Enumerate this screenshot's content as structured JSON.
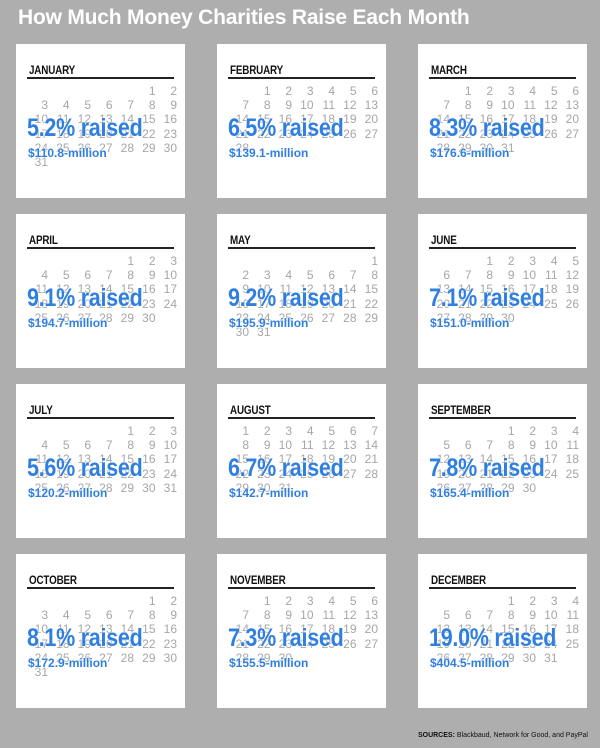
{
  "title": "How Much Money Charities Raise Each Month",
  "source_label": "SOURCES:",
  "source_text": "Blackbaud, Network for Good, and PayPal",
  "chart_data": {
    "type": "table",
    "title": "How Much Money Charities Raise Each Month",
    "months": [
      {
        "name": "JANUARY",
        "percent": 5.2,
        "percent_label": "5.2% raised",
        "amount_label": "$110.8-million",
        "amount_millions": 110.8,
        "start_col": 5,
        "days": 31
      },
      {
        "name": "FEBRUARY",
        "percent": 6.5,
        "percent_label": "6.5% raised",
        "amount_label": "$139.1-million",
        "amount_millions": 139.1,
        "start_col": 1,
        "days": 28
      },
      {
        "name": "MARCH",
        "percent": 8.3,
        "percent_label": "8.3% raised",
        "amount_label": "$176.6-million",
        "amount_millions": 176.6,
        "start_col": 1,
        "days": 31
      },
      {
        "name": "APRIL",
        "percent": 9.1,
        "percent_label": "9.1% raised",
        "amount_label": "$194.7-million",
        "amount_millions": 194.7,
        "start_col": 4,
        "days": 30
      },
      {
        "name": "MAY",
        "percent": 9.2,
        "percent_label": "9.2% raised",
        "amount_label": "$195.9-million",
        "amount_millions": 195.9,
        "start_col": 6,
        "days": 31
      },
      {
        "name": "JUNE",
        "percent": 7.1,
        "percent_label": "7.1% raised",
        "amount_label": "$151.0-million",
        "amount_millions": 151.0,
        "start_col": 2,
        "days": 30
      },
      {
        "name": "JULY",
        "percent": 5.6,
        "percent_label": "5.6% raised",
        "amount_label": "$120.2-million",
        "amount_millions": 120.2,
        "start_col": 4,
        "days": 31
      },
      {
        "name": "AUGUST",
        "percent": 6.7,
        "percent_label": "6.7% raised",
        "amount_label": "$142.7-million",
        "amount_millions": 142.7,
        "start_col": 0,
        "days": 31
      },
      {
        "name": "SEPTEMBER",
        "percent": 7.8,
        "percent_label": "7.8% raised",
        "amount_label": "$165.4-million",
        "amount_millions": 165.4,
        "start_col": 3,
        "days": 30
      },
      {
        "name": "OCTOBER",
        "percent": 8.1,
        "percent_label": "8.1% raised",
        "amount_label": "$172.9-million",
        "amount_millions": 172.9,
        "start_col": 5,
        "days": 31
      },
      {
        "name": "NOVEMBER",
        "percent": 7.3,
        "percent_label": "7.3% raised",
        "amount_label": "$155.5-million",
        "amount_millions": 155.5,
        "start_col": 1,
        "days": 30
      },
      {
        "name": "DECEMBER",
        "percent": 19.0,
        "percent_label": "19.0% raised",
        "amount_label": "$404.5-million",
        "amount_millions": 404.5,
        "start_col": 3,
        "days": 31
      }
    ],
    "colors": {
      "highlight": "#2f7fe0",
      "calendar_digits": "#a6a6a6",
      "background": "#aeaeae"
    }
  }
}
